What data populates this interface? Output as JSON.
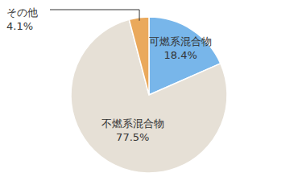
{
  "chart_data": {
    "type": "pie",
    "categories": [
      "可燃系混合物",
      "不燃系混合物",
      "その他"
    ],
    "values": [
      18.4,
      77.5,
      4.1
    ],
    "value_labels": [
      "18.4%",
      "77.5%",
      "4.1%"
    ],
    "colors": [
      "#78b6ea",
      "#e6e0d6",
      "#eaa95c"
    ],
    "data_labels": true
  }
}
